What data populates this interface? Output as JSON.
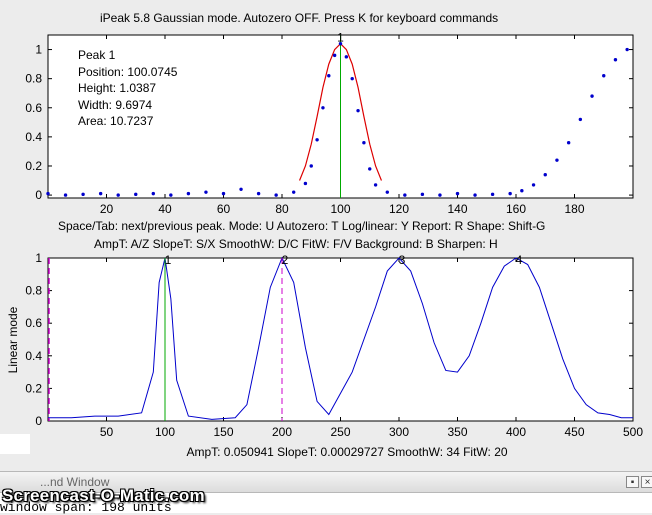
{
  "header": {
    "title_line": "iPeak 5.8  Gaussian mode.       Autozero OFF.    Press K for keyboard commands"
  },
  "peak_info": {
    "label": "Peak 1",
    "position": "Position: 100.0745",
    "height": "Height: 1.0387",
    "width": "Width: 9.6974",
    "area": "Area: 10.7237"
  },
  "help": {
    "line1": "Space/Tab: next/previous peak.  Mode: U  Autozero: T   Log/linear: Y  Report: R   Shape: Shift-G",
    "line2": "AmpT: A/Z   SlopeT: S/X   SmoothW: D/C     FitW: F/V   Background: B   Sharpen: H"
  },
  "status": {
    "line": "AmpT: 0.050941      SlopeT: 0.00029727      SmoothW: 34     FitW: 20"
  },
  "bottom_panel": {
    "window_title": "...nd Window",
    "console_text": "window span: 198 units",
    "watermark": "Screencast-O-Matic.com",
    "minimize_glyph": "▪",
    "close_glyph": "×"
  },
  "colors": {
    "data": "#0000cc",
    "fit": "#dd0000",
    "marker": "#00aa00",
    "cursor": "#cc00cc"
  },
  "chart_data": [
    {
      "type": "scatter",
      "title": "",
      "xlabel": "",
      "ylabel": "",
      "xlim": [
        0,
        200
      ],
      "ylim": [
        -0.02,
        1.1
      ],
      "x_ticks": [
        20,
        40,
        60,
        80,
        100,
        120,
        140,
        160,
        180
      ],
      "y_ticks": [
        0,
        0.2,
        0.4,
        0.6,
        0.8,
        1
      ],
      "y_tick_labels": [
        "0",
        "0.2",
        "0.4",
        "0.6",
        "0.8",
        "1"
      ],
      "series": [
        {
          "style": "data-points",
          "x": [
            0,
            6,
            12,
            18,
            24,
            30,
            36,
            42,
            48,
            54,
            60,
            66,
            72,
            78,
            84,
            88,
            90,
            92,
            94,
            96,
            98,
            100,
            102,
            104,
            106,
            108,
            110,
            112,
            116,
            122,
            128,
            134,
            140,
            146,
            152,
            158,
            162,
            166,
            170,
            174,
            178,
            182,
            186,
            190,
            194,
            198
          ],
          "y": [
            0.01,
            0.0,
            0.005,
            0.01,
            0.0,
            0.005,
            0.01,
            0.0,
            0.01,
            0.02,
            0.01,
            0.04,
            0.01,
            0.0,
            0.02,
            0.08,
            0.2,
            0.38,
            0.6,
            0.82,
            0.96,
            1.04,
            0.95,
            0.8,
            0.58,
            0.36,
            0.18,
            0.07,
            0.02,
            0.0,
            0.005,
            0.0,
            0.01,
            0.0,
            0.005,
            0.01,
            0.03,
            0.07,
            0.14,
            0.24,
            0.36,
            0.52,
            0.68,
            0.82,
            0.93,
            1.0
          ]
        },
        {
          "style": "fit-line",
          "x": [
            86,
            88,
            90,
            92,
            94,
            96,
            98,
            100,
            102,
            104,
            106,
            108,
            110,
            112,
            114
          ],
          "y": [
            0.1,
            0.2,
            0.35,
            0.54,
            0.74,
            0.9,
            1.0,
            1.04,
            1.0,
            0.9,
            0.74,
            0.54,
            0.35,
            0.2,
            0.1
          ]
        }
      ],
      "marker_x": 100,
      "annotations": [
        "1"
      ]
    },
    {
      "type": "line",
      "title": "",
      "xlabel": "",
      "ylabel": "Linear mode",
      "xlim": [
        0,
        500
      ],
      "ylim": [
        0,
        1
      ],
      "x_ticks": [
        50,
        100,
        150,
        200,
        250,
        300,
        350,
        400,
        450,
        500
      ],
      "y_ticks": [
        0,
        0.2,
        0.4,
        0.6,
        0.8,
        1
      ],
      "y_tick_labels": [
        "0",
        "0.2",
        "0.4",
        "0.6",
        "0.8",
        "1"
      ],
      "series": [
        {
          "style": "signal",
          "x": [
            0,
            20,
            40,
            60,
            80,
            90,
            95,
            100,
            105,
            110,
            120,
            140,
            160,
            170,
            180,
            190,
            200,
            210,
            220,
            230,
            240,
            260,
            280,
            290,
            300,
            310,
            320,
            330,
            340,
            350,
            360,
            370,
            380,
            390,
            400,
            410,
            420,
            430,
            440,
            450,
            460,
            470,
            480,
            490,
            500
          ],
          "y": [
            0.02,
            0.02,
            0.03,
            0.03,
            0.05,
            0.3,
            0.85,
            1.0,
            0.75,
            0.25,
            0.03,
            0.01,
            0.02,
            0.1,
            0.45,
            0.82,
            1.0,
            0.85,
            0.45,
            0.12,
            0.04,
            0.3,
            0.7,
            0.92,
            1.0,
            0.92,
            0.72,
            0.48,
            0.31,
            0.3,
            0.4,
            0.6,
            0.82,
            0.95,
            1.0,
            0.96,
            0.82,
            0.6,
            0.38,
            0.2,
            0.1,
            0.05,
            0.04,
            0.02,
            0.02
          ]
        }
      ],
      "peak_labels": [
        "1",
        "2",
        "3",
        "4"
      ],
      "peak_positions": [
        100,
        200,
        300,
        400
      ],
      "marker_x": 100,
      "cursor_x": 200
    }
  ]
}
